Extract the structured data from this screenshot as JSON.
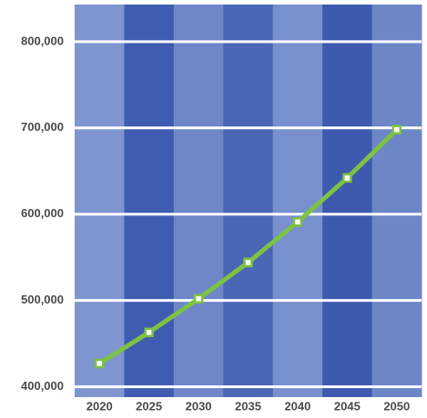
{
  "chart_data": {
    "type": "line",
    "categories": [
      "2020",
      "2025",
      "2030",
      "2035",
      "2040",
      "2045",
      "2050"
    ],
    "values": [
      427000,
      463000,
      502000,
      544000,
      591000,
      642000,
      698000
    ],
    "color": "#7dc242",
    "ylim": [
      388000,
      843000
    ],
    "yticks": [
      {
        "value": 400000,
        "label": "400,000"
      },
      {
        "value": 500000,
        "label": "500,000"
      },
      {
        "value": 600000,
        "label": "600,000"
      },
      {
        "value": 700000,
        "label": "700,000"
      },
      {
        "value": 800000,
        "label": "800,000"
      }
    ],
    "grid": true
  }
}
